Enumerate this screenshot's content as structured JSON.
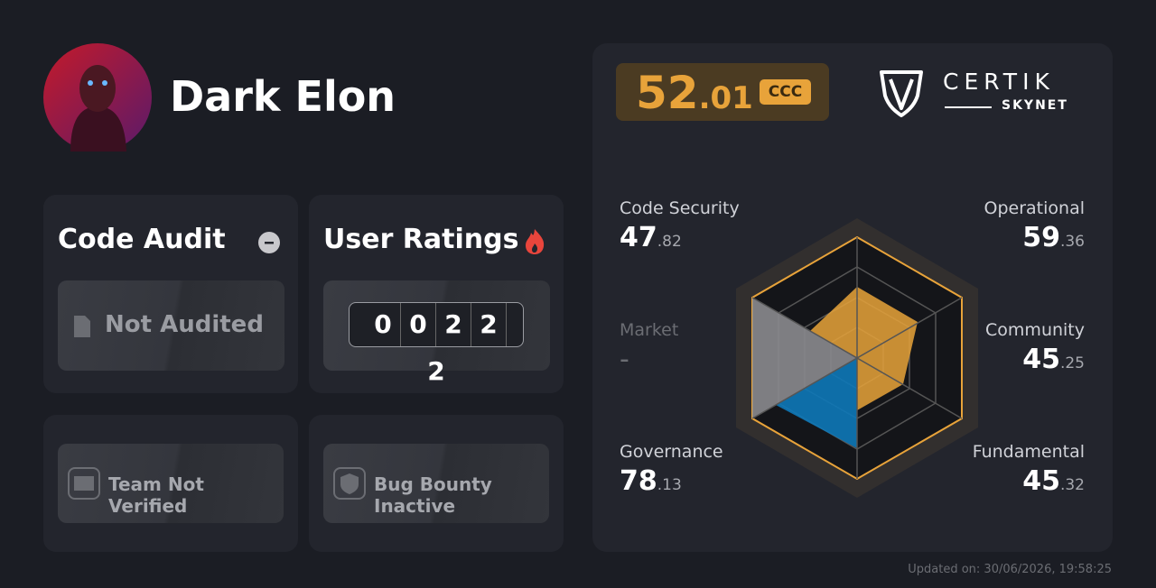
{
  "profile": {
    "name": "Dark Elon"
  },
  "code_audit": {
    "title": "Code Audit",
    "status": "Not Audited"
  },
  "user_ratings": {
    "title": "User Ratings",
    "digits": [
      "0",
      "0",
      "2",
      "2",
      "2"
    ]
  },
  "team": {
    "status": "Team Not Verified"
  },
  "bug_bounty": {
    "status": "Bug Bounty Inactive"
  },
  "score": {
    "integer": "52",
    "decimal": ".01",
    "grade": "CCC"
  },
  "brand": {
    "name": "CERTIK",
    "product": "SKYNET"
  },
  "metrics": [
    {
      "label": "Code Security",
      "integer": "47",
      "decimal": ".82"
    },
    {
      "label": "Operational",
      "integer": "59",
      "decimal": ".36"
    },
    {
      "label": "Market",
      "integer": "-"
    },
    {
      "label": "Community",
      "integer": "45",
      "decimal": ".25"
    },
    {
      "label": "Governance",
      "integer": "78",
      "decimal": ".13"
    },
    {
      "label": "Fundamental",
      "integer": "45",
      "decimal": ".32"
    }
  ],
  "footer": {
    "updated": "Updated on: 30/06/2026, 19:58:25"
  }
}
